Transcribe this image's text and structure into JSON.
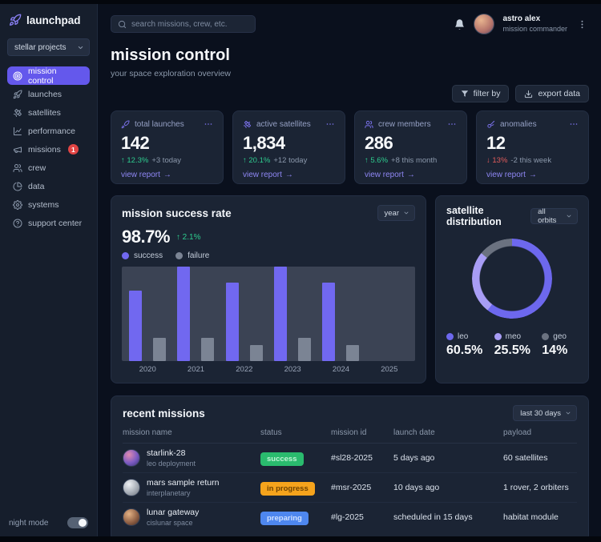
{
  "sidebar": {
    "logo": "launchpad",
    "project_select": {
      "value": "stellar projects"
    },
    "items": [
      {
        "label": "mission control",
        "active": true
      },
      {
        "label": "launches"
      },
      {
        "label": "satellites"
      },
      {
        "label": "performance"
      },
      {
        "label": "missions",
        "badge": "1"
      },
      {
        "label": "crew"
      },
      {
        "label": "data"
      },
      {
        "label": "systems"
      },
      {
        "label": "support center"
      }
    ],
    "night_mode": {
      "label": "night mode",
      "on": true
    }
  },
  "header": {
    "search_placeholder": "search missions, crew, etc.",
    "user": {
      "name": "astro alex",
      "role": "mission commander"
    }
  },
  "page": {
    "title": "mission control",
    "subtitle": "your space exploration overview",
    "actions": {
      "filter": "filter by",
      "export": "export data"
    }
  },
  "ui": {
    "arrow_right": "→"
  },
  "stats": [
    {
      "label": "total launches",
      "value": "142",
      "delta": "↑ 12.3%",
      "note": "+3 today",
      "trend": "up",
      "link": "view report"
    },
    {
      "label": "active satellites",
      "value": "1,834",
      "delta": "↑ 20.1%",
      "note": "+12 today",
      "trend": "up",
      "link": "view report"
    },
    {
      "label": "crew members",
      "value": "286",
      "delta": "↑ 5.6%",
      "note": "+8 this month",
      "trend": "up",
      "link": "view report"
    },
    {
      "label": "anomalies",
      "value": "12",
      "delta": "↓ 13%",
      "note": "-2 this week",
      "trend": "down",
      "link": "view report"
    }
  ],
  "success_card": {
    "title": "mission success rate",
    "select_value": "year",
    "big_value": "98.7%",
    "delta": "↑ 2.1%",
    "legend": [
      {
        "name": "success"
      },
      {
        "name": "failure"
      }
    ]
  },
  "distribution_card": {
    "title": "satellite distribution",
    "select_value": "all orbits",
    "legend": [
      {
        "name": "leo",
        "pct": "60.5%"
      },
      {
        "name": "meo",
        "pct": "25.5%"
      },
      {
        "name": "geo",
        "pct": "14%"
      }
    ]
  },
  "missions_card": {
    "title": "recent missions",
    "select_value": "last 30 days",
    "columns": [
      "mission name",
      "status",
      "mission id",
      "launch date",
      "payload"
    ],
    "rows": [
      {
        "name": "starlink-28",
        "sub": "leo deployment",
        "status": "success",
        "status_color": "green",
        "id": "#sl28-2025",
        "date": "5 days ago",
        "payload": "60 satellites"
      },
      {
        "name": "mars sample return",
        "sub": "interplanetary",
        "status": "in progress",
        "status_color": "amber",
        "id": "#msr-2025",
        "date": "10 days ago",
        "payload": "1 rover, 2 orbiters"
      },
      {
        "name": "lunar gateway",
        "sub": "cislunar space",
        "status": "preparing",
        "status_color": "blue",
        "id": "#lg-2025",
        "date": "scheduled in 15 days",
        "payload": "habitat module"
      }
    ]
  },
  "colors": {
    "accent": "#6458ec",
    "bar_success": "#7168f0",
    "bar_failure": "#7b8494",
    "green": "#2ecc8f",
    "red": "#e05b5b",
    "donut": [
      "#6d68ee",
      "#a89df5",
      "#6b7280"
    ]
  },
  "chart_data": [
    {
      "type": "bar",
      "title": "mission success rate",
      "categories": [
        "2020",
        "2021",
        "2022",
        "2023",
        "2024",
        "2025"
      ],
      "series": [
        {
          "name": "success",
          "color": "#7168f0",
          "values": [
            75,
            100,
            83,
            100,
            83,
            null
          ]
        },
        {
          "name": "failure",
          "color": "#7b8494",
          "values": [
            25,
            25,
            17,
            25,
            17,
            null
          ]
        }
      ],
      "ylabel": "",
      "xlabel": "",
      "ylim": [
        0,
        100
      ],
      "grid": false,
      "legend_position": "top"
    },
    {
      "type": "pie",
      "variant": "donut",
      "title": "satellite distribution",
      "labels": [
        "leo",
        "meo",
        "geo"
      ],
      "values": [
        60.5,
        25.5,
        14
      ],
      "colors": [
        "#6d68ee",
        "#a89df5",
        "#6b7280"
      ]
    }
  ]
}
